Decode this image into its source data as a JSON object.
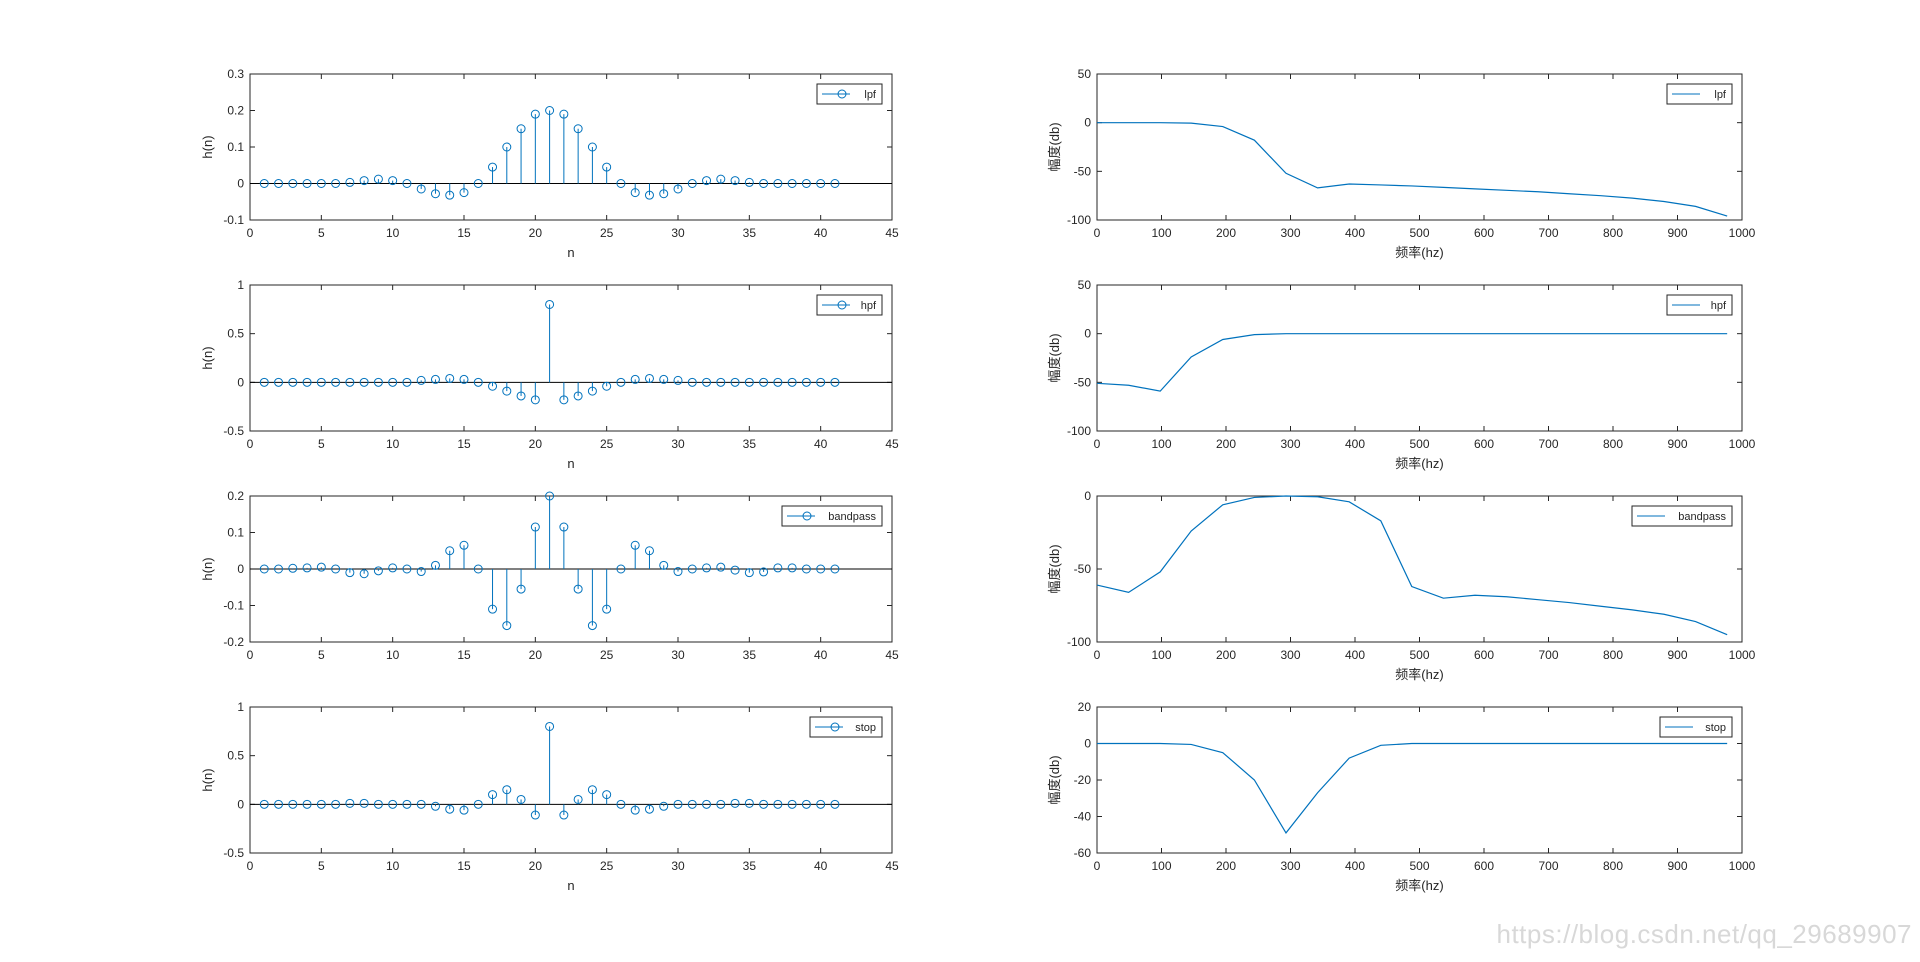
{
  "watermark": "https://blog.csdn.net/qq_29689907",
  "colors": {
    "series": "#0072BD",
    "axis": "#262626"
  },
  "chart_data": [
    {
      "id": "lpf-impulse",
      "type": "stem",
      "xlabel": "n",
      "ylabel": "h(n)",
      "xlim": [
        0,
        45
      ],
      "ylim": [
        -0.1,
        0.3
      ],
      "xticks": [
        0,
        5,
        10,
        15,
        20,
        25,
        30,
        35,
        40,
        45
      ],
      "yticks": [
        -0.1,
        0,
        0.1,
        0.2,
        0.3
      ],
      "legend": "lpf",
      "legend_position": "top-right",
      "x": [
        1,
        2,
        3,
        4,
        5,
        6,
        7,
        8,
        9,
        10,
        11,
        12,
        13,
        14,
        15,
        16,
        17,
        18,
        19,
        20,
        21,
        22,
        23,
        24,
        25,
        26,
        27,
        28,
        29,
        30,
        31,
        32,
        33,
        34,
        35,
        36,
        37,
        38,
        39,
        40,
        41
      ],
      "values": [
        0,
        0,
        0,
        0,
        0,
        0,
        0.003,
        0.008,
        0.012,
        0.008,
        0,
        -0.015,
        -0.028,
        -0.032,
        -0.025,
        0,
        0.045,
        0.1,
        0.15,
        0.19,
        0.2,
        0.19,
        0.15,
        0.1,
        0.045,
        0,
        -0.025,
        -0.032,
        -0.028,
        -0.015,
        0,
        0.008,
        0.012,
        0.008,
        0.003,
        0,
        0,
        0,
        0,
        0,
        0
      ]
    },
    {
      "id": "lpf-magnitude",
      "type": "line",
      "xlabel": "频率(hz)",
      "ylabel": "幅度(db)",
      "xlim": [
        0,
        1000
      ],
      "ylim": [
        -100,
        50
      ],
      "xticks": [
        0,
        100,
        200,
        300,
        400,
        500,
        600,
        700,
        800,
        900,
        1000
      ],
      "yticks": [
        -100,
        -50,
        0,
        50
      ],
      "legend": "lpf",
      "legend_position": "top-right",
      "x": [
        0,
        49,
        98,
        146,
        195,
        244,
        293,
        342,
        391,
        440,
        488,
        537,
        586,
        635,
        684,
        732,
        781,
        830,
        879,
        928,
        977
      ],
      "values": [
        0,
        0,
        0,
        -0.5,
        -4,
        -18,
        -52,
        -67,
        -63,
        -64,
        -65,
        -66.5,
        -68,
        -69.5,
        -71,
        -73,
        -75,
        -77.5,
        -81,
        -86,
        -96
      ]
    },
    {
      "id": "hpf-impulse",
      "type": "stem",
      "xlabel": "n",
      "ylabel": "h(n)",
      "xlim": [
        0,
        45
      ],
      "ylim": [
        -0.5,
        1
      ],
      "xticks": [
        0,
        5,
        10,
        15,
        20,
        25,
        30,
        35,
        40,
        45
      ],
      "yticks": [
        -0.5,
        0,
        0.5,
        1
      ],
      "legend": "hpf",
      "legend_position": "top-right",
      "x": [
        1,
        2,
        3,
        4,
        5,
        6,
        7,
        8,
        9,
        10,
        11,
        12,
        13,
        14,
        15,
        16,
        17,
        18,
        19,
        20,
        21,
        22,
        23,
        24,
        25,
        26,
        27,
        28,
        29,
        30,
        31,
        32,
        33,
        34,
        35,
        36,
        37,
        38,
        39,
        40,
        41
      ],
      "values": [
        0,
        0,
        0,
        0,
        0,
        0,
        0,
        0,
        0,
        0,
        0,
        0.02,
        0.03,
        0.04,
        0.03,
        0,
        -0.04,
        -0.09,
        -0.14,
        -0.18,
        0.8,
        -0.18,
        -0.14,
        -0.09,
        -0.04,
        0,
        0.03,
        0.04,
        0.03,
        0.02,
        0,
        0,
        0,
        0,
        0,
        0,
        0,
        0,
        0,
        0,
        0
      ]
    },
    {
      "id": "hpf-magnitude",
      "type": "line",
      "xlabel": "频率(hz)",
      "ylabel": "幅度(db)",
      "xlim": [
        0,
        1000
      ],
      "ylim": [
        -100,
        50
      ],
      "xticks": [
        0,
        100,
        200,
        300,
        400,
        500,
        600,
        700,
        800,
        900,
        1000
      ],
      "yticks": [
        -100,
        -50,
        0,
        50
      ],
      "legend": "hpf",
      "legend_position": "top-right",
      "x": [
        0,
        49,
        98,
        146,
        195,
        244,
        293,
        342,
        391,
        440,
        488,
        537,
        586,
        635,
        684,
        732,
        781,
        830,
        879,
        928,
        977
      ],
      "values": [
        -51,
        -53,
        -59,
        -24,
        -6,
        -1,
        0,
        0,
        0,
        0,
        0,
        0,
        0,
        0,
        0,
        0,
        0,
        0,
        0,
        0,
        0
      ]
    },
    {
      "id": "bandpass-impulse",
      "type": "stem",
      "xlabel": "",
      "ylabel": "h(n)",
      "xlim": [
        0,
        45
      ],
      "ylim": [
        -0.2,
        0.2
      ],
      "xticks": [
        0,
        5,
        10,
        15,
        20,
        25,
        30,
        35,
        40,
        45
      ],
      "yticks": [
        -0.2,
        -0.1,
        0,
        0.1,
        0.2
      ],
      "legend": "bandpass",
      "legend_position": "top-right",
      "x": [
        1,
        2,
        3,
        4,
        5,
        6,
        7,
        8,
        9,
        10,
        11,
        12,
        13,
        14,
        15,
        16,
        17,
        18,
        19,
        20,
        21,
        22,
        23,
        24,
        25,
        26,
        27,
        28,
        29,
        30,
        31,
        32,
        33,
        34,
        35,
        36,
        37,
        38,
        39,
        40,
        41
      ],
      "values": [
        0,
        0,
        0.002,
        0.003,
        0.005,
        0,
        -0.01,
        -0.013,
        -0.005,
        0.003,
        0,
        -0.007,
        0.01,
        0.05,
        0.065,
        0,
        -0.11,
        -0.155,
        -0.055,
        0.115,
        0.2,
        0.115,
        -0.055,
        -0.155,
        -0.11,
        0,
        0.065,
        0.05,
        0.01,
        -0.007,
        0,
        0.003,
        0.005,
        -0.003,
        -0.01,
        -0.008,
        0.003,
        0.003,
        0,
        0,
        0
      ]
    },
    {
      "id": "bandpass-magnitude",
      "type": "line",
      "xlabel": "频率(hz)",
      "ylabel": "幅度(db)",
      "xlim": [
        0,
        1000
      ],
      "ylim": [
        -100,
        0
      ],
      "xticks": [
        0,
        100,
        200,
        300,
        400,
        500,
        600,
        700,
        800,
        900,
        1000
      ],
      "yticks": [
        -100,
        -50,
        0
      ],
      "legend": "bandpass",
      "legend_position": "top-right",
      "x": [
        0,
        49,
        98,
        146,
        195,
        244,
        293,
        342,
        391,
        440,
        488,
        537,
        586,
        635,
        684,
        732,
        781,
        830,
        879,
        928,
        977
      ],
      "values": [
        -61,
        -66,
        -52,
        -24,
        -6,
        -1,
        0,
        -0.5,
        -4,
        -17,
        -62,
        -70,
        -68,
        -69,
        -71,
        -73,
        -75.5,
        -78,
        -81,
        -86,
        -95
      ]
    },
    {
      "id": "stop-impulse",
      "type": "stem",
      "xlabel": "n",
      "ylabel": "h(n)",
      "xlim": [
        0,
        45
      ],
      "ylim": [
        -0.5,
        1
      ],
      "xticks": [
        0,
        5,
        10,
        15,
        20,
        25,
        30,
        35,
        40,
        45
      ],
      "yticks": [
        -0.5,
        0,
        0.5,
        1
      ],
      "legend": "stop",
      "legend_position": "top-right",
      "x": [
        1,
        2,
        3,
        4,
        5,
        6,
        7,
        8,
        9,
        10,
        11,
        12,
        13,
        14,
        15,
        16,
        17,
        18,
        19,
        20,
        21,
        22,
        23,
        24,
        25,
        26,
        27,
        28,
        29,
        30,
        31,
        32,
        33,
        34,
        35,
        36,
        37,
        38,
        39,
        40,
        41
      ],
      "values": [
        0,
        0,
        0,
        0,
        0,
        0,
        0.01,
        0.01,
        0,
        0,
        0,
        0,
        -0.02,
        -0.05,
        -0.06,
        0,
        0.1,
        0.15,
        0.05,
        -0.11,
        0.8,
        -0.11,
        0.05,
        0.15,
        0.1,
        0,
        -0.06,
        -0.05,
        -0.02,
        0,
        0,
        0,
        0,
        0.01,
        0.01,
        0,
        0,
        0,
        0,
        0,
        0
      ]
    },
    {
      "id": "stop-magnitude",
      "type": "line",
      "xlabel": "频率(hz)",
      "ylabel": "幅度(db)",
      "xlim": [
        0,
        1000
      ],
      "ylim": [
        -60,
        20
      ],
      "xticks": [
        0,
        100,
        200,
        300,
        400,
        500,
        600,
        700,
        800,
        900,
        1000
      ],
      "yticks": [
        -60,
        -40,
        -20,
        0,
        20
      ],
      "legend": "stop",
      "legend_position": "top-right",
      "x": [
        0,
        49,
        98,
        146,
        195,
        244,
        293,
        342,
        391,
        440,
        488,
        537,
        586,
        635,
        684,
        732,
        781,
        830,
        879,
        928,
        977
      ],
      "values": [
        0,
        0,
        0,
        -0.5,
        -5,
        -20,
        -49,
        -27,
        -8,
        -1,
        0,
        0,
        0,
        0,
        0,
        0,
        0,
        0,
        0,
        0,
        0
      ]
    }
  ]
}
